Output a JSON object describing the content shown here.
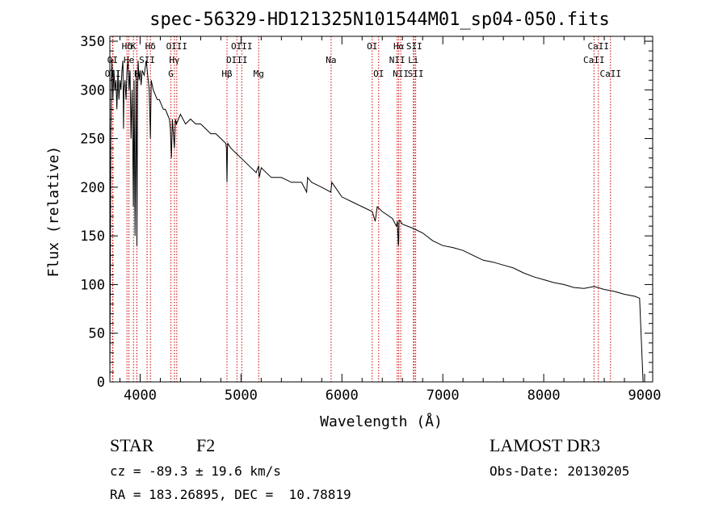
{
  "chart_data": {
    "type": "line",
    "title": "spec-56329-HD121325N101544M01_sp04-050.fits",
    "xlabel": "Wavelength (Å)",
    "ylabel": "Flux (relative)",
    "xlim": [
      3700,
      9080
    ],
    "ylim": [
      0,
      355
    ],
    "xticks": [
      4000,
      5000,
      6000,
      7000,
      8000,
      9000
    ],
    "yticks": [
      0,
      50,
      100,
      150,
      200,
      250,
      300,
      350
    ],
    "series": [
      {
        "name": "flux",
        "x": [
          3700,
          3705,
          3710,
          3715,
          3720,
          3730,
          3740,
          3750,
          3760,
          3770,
          3780,
          3790,
          3800,
          3810,
          3820,
          3830,
          3835,
          3840,
          3850,
          3860,
          3870,
          3880,
          3890,
          3900,
          3910,
          3920,
          3925,
          3933,
          3940,
          3950,
          3960,
          3968,
          3975,
          3980,
          3990,
          4000,
          4010,
          4020,
          4040,
          4060,
          4080,
          4090,
          4102,
          4110,
          4130,
          4150,
          4170,
          4190,
          4210,
          4230,
          4250,
          4270,
          4290,
          4300,
          4310,
          4320,
          4340,
          4350,
          4360,
          4380,
          4400,
          4450,
          4500,
          4550,
          4600,
          4650,
          4700,
          4750,
          4800,
          4850,
          4855,
          4861,
          4866,
          4870,
          4900,
          4950,
          5000,
          5050,
          5100,
          5150,
          5175,
          5180,
          5200,
          5250,
          5300,
          5400,
          5500,
          5600,
          5650,
          5660,
          5700,
          5800,
          5890,
          5900,
          6000,
          6100,
          6200,
          6300,
          6330,
          6350,
          6400,
          6500,
          6540,
          6550,
          6560,
          6563,
          6566,
          6570,
          6580,
          6600,
          6700,
          6800,
          6900,
          7000,
          7100,
          7200,
          7300,
          7400,
          7500,
          7600,
          7700,
          7800,
          7900,
          8000,
          8100,
          8200,
          8300,
          8400,
          8500,
          8600,
          8700,
          8800,
          8900,
          8950,
          8985,
          8990,
          9000
        ],
        "values": [
          0,
          120,
          250,
          310,
          330,
          290,
          320,
          300,
          310,
          280,
          320,
          290,
          310,
          300,
          320,
          330,
          260,
          300,
          310,
          290,
          320,
          330,
          300,
          320,
          250,
          300,
          270,
          180,
          310,
          150,
          320,
          140,
          300,
          330,
          310,
          320,
          305,
          320,
          315,
          330,
          310,
          300,
          250,
          310,
          300,
          295,
          290,
          290,
          285,
          280,
          280,
          275,
          270,
          260,
          230,
          270,
          240,
          270,
          265,
          270,
          275,
          265,
          270,
          265,
          265,
          260,
          255,
          255,
          250,
          245,
          240,
          205,
          240,
          245,
          240,
          235,
          230,
          225,
          220,
          215,
          222,
          210,
          220,
          215,
          210,
          210,
          205,
          205,
          195,
          210,
          205,
          200,
          195,
          205,
          190,
          185,
          180,
          175,
          165,
          180,
          175,
          168,
          160,
          165,
          140,
          145,
          165,
          166,
          165,
          162,
          158,
          153,
          145,
          140,
          138,
          135,
          130,
          125,
          123,
          120,
          117,
          112,
          108,
          105,
          102,
          100,
          97,
          96,
          98,
          95,
          93,
          90,
          88,
          86,
          0,
          0,
          0
        ]
      }
    ],
    "reference_lines": [
      {
        "label": "Hδ",
        "wavelength": 4102,
        "row": 0
      },
      {
        "label": "K",
        "wavelength": 3934,
        "row": 0
      },
      {
        "label": "Hδ",
        "wavelength": 3870,
        "row": 0
      },
      {
        "label": "OI",
        "wavelength": 3727,
        "row": 1
      },
      {
        "label": "He",
        "wavelength": 3889,
        "row": 1
      },
      {
        "label": "SII",
        "wavelength": 4069,
        "row": 1
      },
      {
        "label": "OII",
        "wavelength": 3730,
        "row": 2
      },
      {
        "label": "H",
        "wavelength": 3968,
        "row": 2
      },
      {
        "label": "OIII",
        "wavelength": 4363,
        "row": 0
      },
      {
        "label": "Hγ",
        "wavelength": 4340,
        "row": 1
      },
      {
        "label": "G",
        "wavelength": 4305,
        "row": 2
      },
      {
        "label": "Hβ",
        "wavelength": 4861,
        "row": 2
      },
      {
        "label": "OIII",
        "wavelength": 5007,
        "row": 0
      },
      {
        "label": "OIII",
        "wavelength": 4959,
        "row": 1
      },
      {
        "label": "Mg",
        "wavelength": 5175,
        "row": 2
      },
      {
        "label": "Na",
        "wavelength": 5893,
        "row": 1
      },
      {
        "label": "OI",
        "wavelength": 6300,
        "row": 0
      },
      {
        "label": "OI",
        "wavelength": 6364,
        "row": 2
      },
      {
        "label": "Hα",
        "wavelength": 6563,
        "row": 0
      },
      {
        "label": "NII",
        "wavelength": 6548,
        "row": 1
      },
      {
        "label": "NII",
        "wavelength": 6583,
        "row": 2
      },
      {
        "label": "SII",
        "wavelength": 6717,
        "row": 0
      },
      {
        "label": "Li",
        "wavelength": 6708,
        "row": 1
      },
      {
        "label": "SII",
        "wavelength": 6731,
        "row": 2
      },
      {
        "label": "CaII",
        "wavelength": 8542,
        "row": 0
      },
      {
        "label": "CaII",
        "wavelength": 8498,
        "row": 1
      },
      {
        "label": "CaII",
        "wavelength": 8662,
        "row": 2
      }
    ]
  },
  "info": {
    "class": "STAR",
    "subclass": "F2",
    "survey": "LAMOST DR3",
    "redshift": "cz = -89.3 ± 19.6 km/s",
    "obs_date": "Obs-Date: 20130205",
    "coords": "RA = 183.26895, DEC =  10.78819"
  },
  "colors": {
    "line": "#000000",
    "reference": "#cc0000",
    "axes": "#000000"
  }
}
